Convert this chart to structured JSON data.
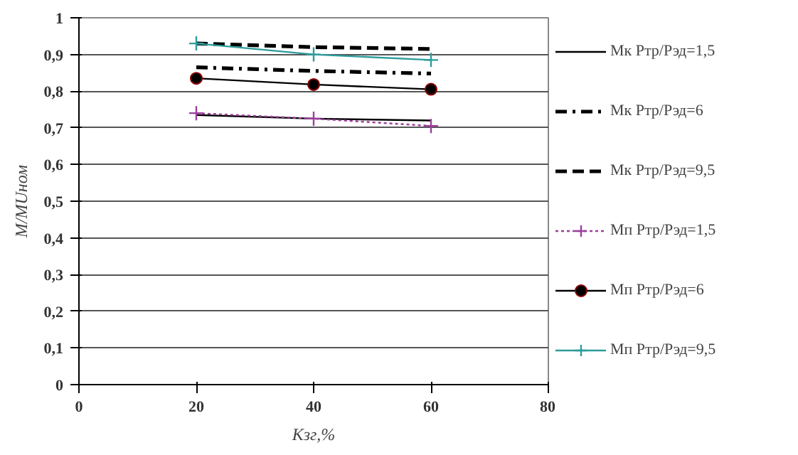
{
  "chart_data": {
    "type": "line",
    "xlabel": "Kзг,%",
    "ylabel": "M/MUном",
    "x": [
      20,
      40,
      60
    ],
    "xlim": [
      0,
      80
    ],
    "xticks": [
      0,
      20,
      40,
      60,
      80
    ],
    "ylim": [
      0,
      1
    ],
    "yticks": [
      0,
      {
        "value": 0.1,
        "label": "0,1"
      },
      {
        "value": 0.2,
        "label": "0,2"
      },
      {
        "value": 0.3,
        "label": "0,3"
      },
      {
        "value": 0.4,
        "label": "0,4"
      },
      {
        "value": 0.5,
        "label": "0,5"
      },
      {
        "value": 0.6,
        "label": "0,6"
      },
      {
        "value": 0.7,
        "label": "0,7"
      },
      {
        "value": 0.8,
        "label": "0,8"
      },
      {
        "value": 0.9,
        "label": "0,9"
      },
      1
    ],
    "grid": "y",
    "legend": "right",
    "series": [
      {
        "name": "Мк Ртр/Рэд=1,5",
        "color": "#000000",
        "values": [
          0.735,
          0.725,
          0.72
        ],
        "line_style": "solid",
        "marker": "none"
      },
      {
        "name": "Мк Ртр/Рэд=6",
        "color": "#000000",
        "values": [
          0.865,
          0.855,
          0.848
        ],
        "line_style": "dashdot",
        "marker": "none"
      },
      {
        "name": "Мк Ртр/Рэд=9,5",
        "color": "#000000",
        "values": [
          0.93,
          0.92,
          0.915
        ],
        "line_style": "dashed",
        "marker": "none"
      },
      {
        "name": "Мп Ртр/Рэд=1,5",
        "color": "#9b3f9b",
        "values": [
          0.74,
          0.725,
          0.705
        ],
        "line_style": "dotted",
        "marker": "cross"
      },
      {
        "name": "Мп Ртр/Рэд=6",
        "color": "#000000",
        "values": [
          0.835,
          0.818,
          0.805
        ],
        "line_style": "solid",
        "marker": "circle"
      },
      {
        "name": "Мп Ртр/Рэд=9,5",
        "color": "#2e9c9c",
        "values": [
          0.93,
          0.9,
          0.885
        ],
        "line_style": "solid",
        "marker": "cross"
      }
    ]
  }
}
